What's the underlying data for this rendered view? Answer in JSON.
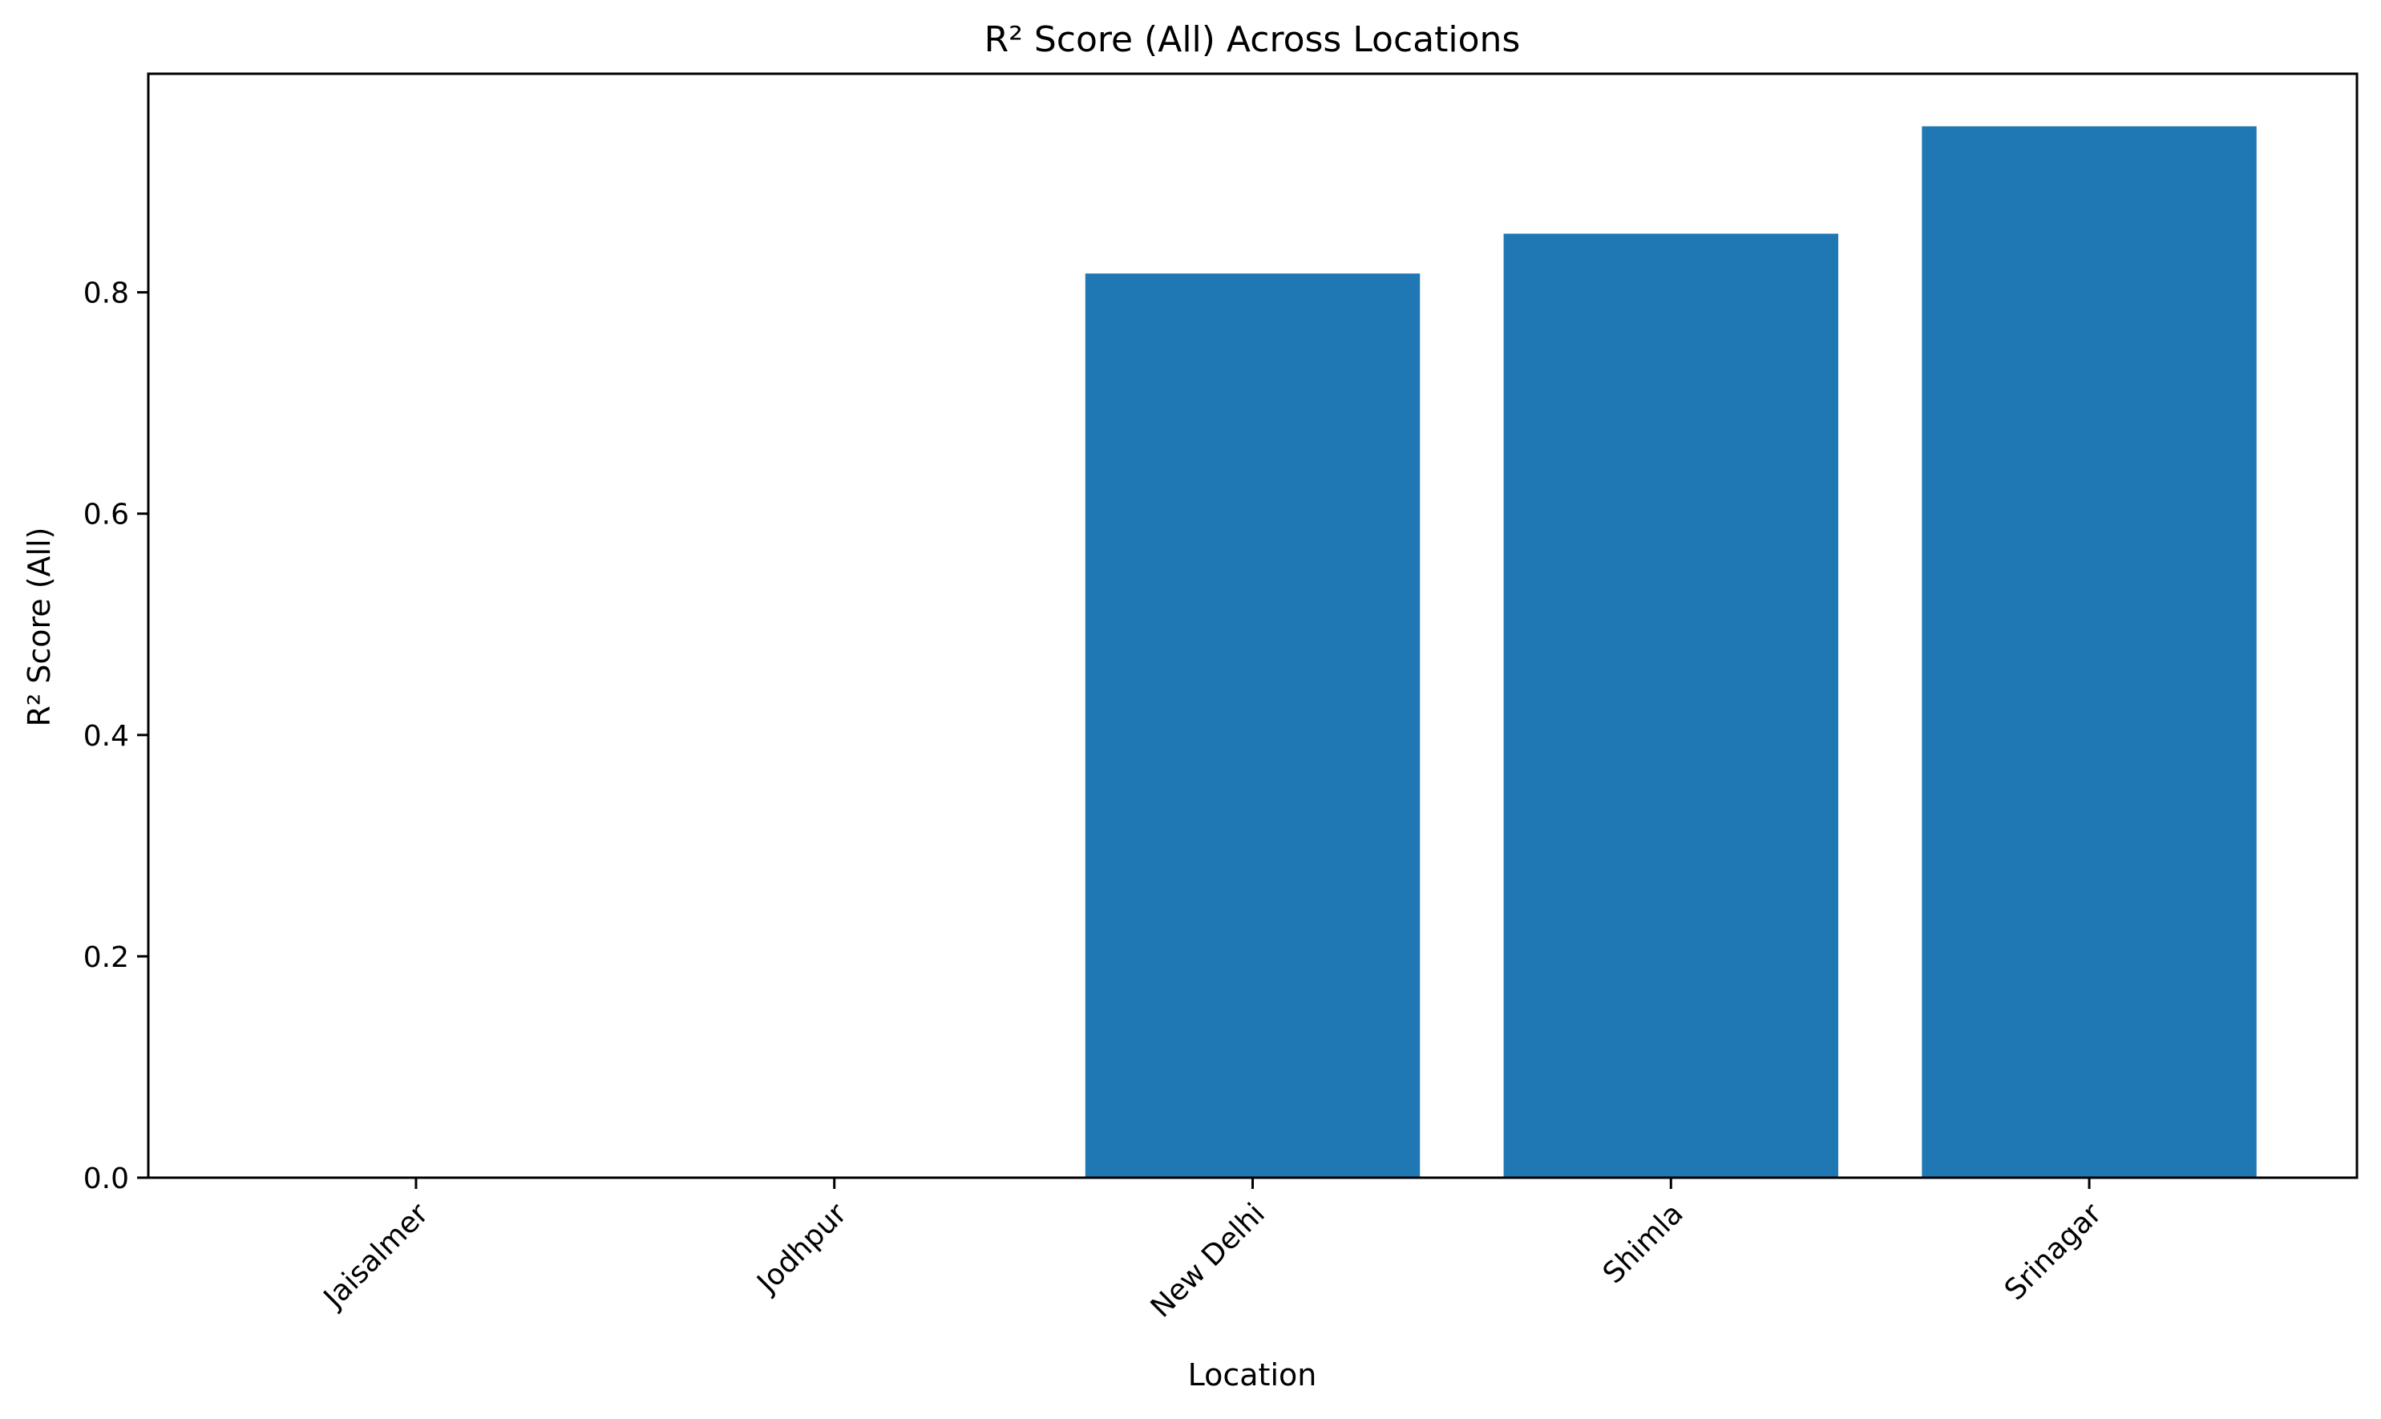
{
  "chart_data": {
    "type": "bar",
    "title": "R² Score (All) Across Locations",
    "xlabel": "Location",
    "ylabel": "R² Score (All)",
    "categories": [
      "Jaisalmer",
      "Jodhpur",
      "New Delhi",
      "Shimla",
      "Srinagar"
    ],
    "values": [
      0.0,
      0.0,
      0.817,
      0.853,
      0.95
    ],
    "ylim": [
      0,
      0.9975
    ],
    "yticks": [
      0.0,
      0.2,
      0.4,
      0.6,
      0.8
    ],
    "ytick_labels": [
      "0.0",
      "0.2",
      "0.4",
      "0.6",
      "0.8"
    ],
    "bar_color": "#1f77b4",
    "grid": false,
    "legend": "none"
  }
}
